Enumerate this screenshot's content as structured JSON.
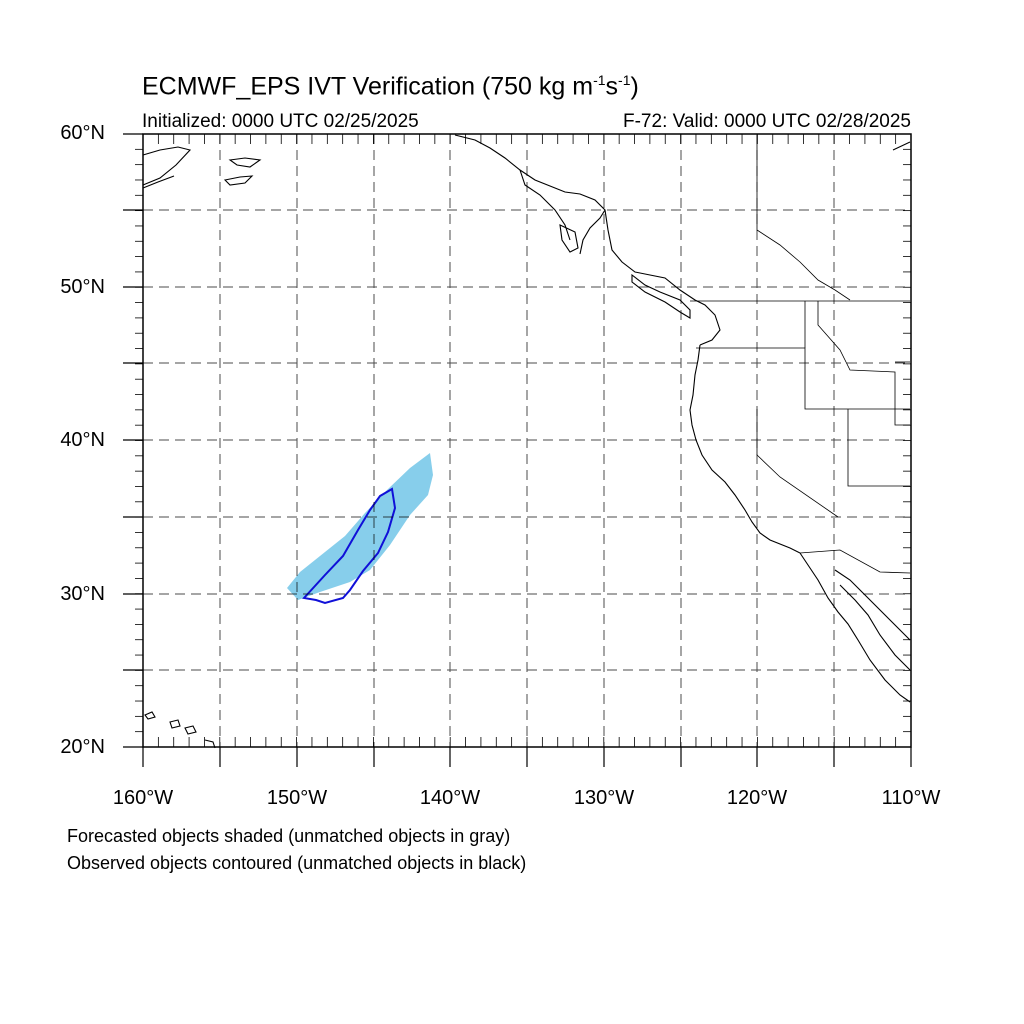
{
  "title": {
    "main": "ECMWF_EPS IVT Verification (750 kg m",
    "sup1": "-1",
    "mid": "s",
    "sup2": "-1",
    "end": ")"
  },
  "initialized": "Initialized: 0000 UTC 02/25/2025",
  "valid": "F-72: Valid: 0000 UTC 02/28/2025",
  "lat_labels": [
    "60°N",
    "50°N",
    "40°N",
    "30°N",
    "20°N"
  ],
  "lon_labels": [
    "160°W",
    "150°W",
    "140°W",
    "130°W",
    "120°W",
    "110°W"
  ],
  "notes": {
    "line1": "Forecasted objects shaded (unmatched objects in gray)",
    "line2": "Observed objects contoured (unmatched objects in black)"
  },
  "map": {
    "lon_range": [
      -160,
      -110
    ],
    "lat_range": [
      20,
      60
    ],
    "grid_lon_step": 5,
    "grid_lat_step": 5,
    "forecast_color": "#87ceeb",
    "observed_color": "#1010d8",
    "grid_style": "dashed"
  }
}
